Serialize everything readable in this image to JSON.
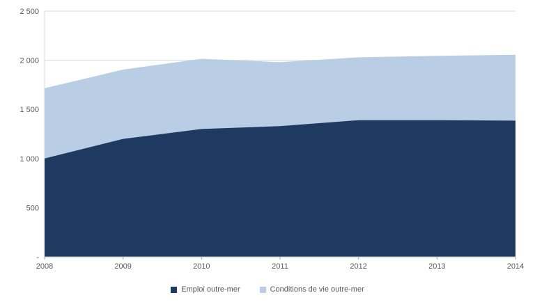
{
  "chart_data": {
    "type": "area",
    "stacked": true,
    "title": "",
    "xlabel": "",
    "ylabel": "",
    "x": [
      "2008",
      "2009",
      "2010",
      "2011",
      "2012",
      "2013",
      "2014"
    ],
    "series": [
      {
        "name": "Emploi outre-mer",
        "color": "#1F3A60",
        "values": [
          1000,
          1200,
          1300,
          1330,
          1390,
          1390,
          1385
        ]
      },
      {
        "name": "Conditions de vie outre-mer",
        "color": "#B9CDE5",
        "values": [
          715,
          705,
          715,
          650,
          640,
          655,
          670
        ]
      }
    ],
    "totals": [
      1715,
      1905,
      2015,
      1980,
      2030,
      2045,
      2055
    ],
    "ylim": [
      0,
      2500
    ],
    "yticks": [
      {
        "value": 2500,
        "label": "2 500"
      },
      {
        "value": 2000,
        "label": "2 000"
      },
      {
        "value": 1500,
        "label": "1 500"
      },
      {
        "value": 1000,
        "label": "1 000"
      },
      {
        "value": 500,
        "label": "500"
      },
      {
        "value": 0,
        "label": "-"
      }
    ],
    "grid": true,
    "legend_position": "bottom",
    "grid_color": "#D9D9D9",
    "axis_color": "#A6A6A6",
    "text_color": "#595959",
    "background": "#FFFFFF"
  }
}
